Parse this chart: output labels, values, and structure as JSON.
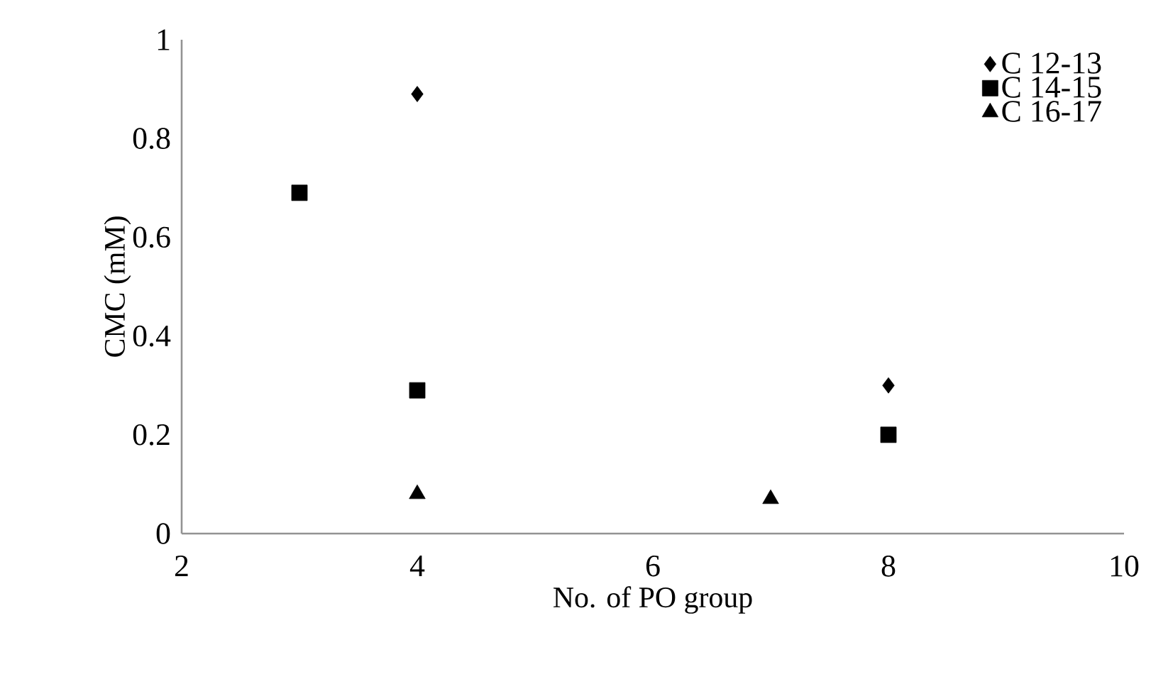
{
  "chart_data": {
    "type": "scatter",
    "xlabel": "No. of  PO group",
    "ylabel": "CMC (mM)",
    "xlim": [
      2,
      10
    ],
    "xticks": [
      2,
      4,
      6,
      8,
      10
    ],
    "ylim": [
      0,
      1
    ],
    "yticks": [
      0,
      0.2,
      0.4,
      0.6,
      0.8,
      1
    ],
    "grid": false,
    "legend": "top right",
    "series": [
      {
        "name": "C 12-13",
        "color": "#000000",
        "marker": "diamond",
        "x": [
          4,
          8
        ],
        "values": [
          0.89,
          0.3
        ]
      },
      {
        "name": "C 14-15",
        "color": "#000000",
        "marker": "square",
        "x": [
          3,
          4,
          8
        ],
        "values": [
          0.69,
          0.29,
          0.2
        ]
      },
      {
        "name": "C 16-17",
        "color": "#000000",
        "marker": "triangle",
        "x": [
          4,
          7
        ],
        "values": [
          0.08,
          0.07
        ]
      }
    ]
  }
}
